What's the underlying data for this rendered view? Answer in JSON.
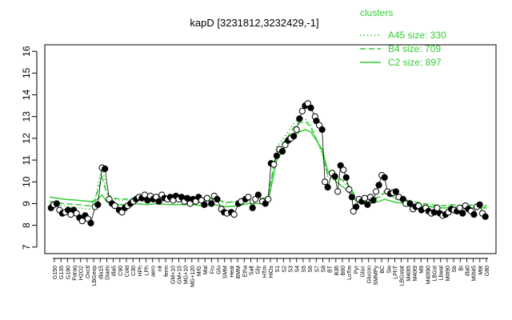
{
  "chart_data": {
    "type": "line",
    "title": "kapD [3231812,3232429,-1]",
    "xlabel": "",
    "ylabel": "",
    "ylim": [
      7,
      16
    ],
    "y_ticks": [
      7,
      8,
      9,
      10,
      11,
      12,
      13,
      14,
      15,
      16
    ],
    "grid": false,
    "legend": {
      "title": "clusters",
      "position": "top-right",
      "color": "#33cc33",
      "items": [
        {
          "label": "A45 size: 330",
          "style": "dotted"
        },
        {
          "label": "B4 size: 709",
          "style": "dashed"
        },
        {
          "label": "C2 size: 897",
          "style": "solid"
        }
      ]
    },
    "x_tick_labels": [
      "G150",
      "G135",
      "G180",
      "Paraq",
      "H2O2",
      "Oxctl",
      "LBGexp",
      "dla15",
      "Diami",
      "dla5",
      "C90",
      "Cold",
      "C30",
      "HPh",
      "LPh",
      "aero",
      "nit",
      "ferm",
      "GM+10",
      "GM+15",
      "MG+10",
      "MG+120",
      "M/G",
      "Mal",
      "Fru",
      "Glu",
      "SMM",
      "Heat",
      "BMM",
      "Etha",
      "Salt",
      "Gly",
      "HTm",
      "HiOs",
      "S1",
      "S2",
      "S3",
      "S4",
      "S5",
      "S6",
      "S7",
      "S8",
      "BT",
      "B36",
      "B60",
      "LoTm",
      "Pyr",
      "Gluc",
      "Glucon",
      "SMMPy",
      "BC",
      "Sw",
      "LPhT",
      "LBGstat",
      "M40t5",
      "M40t9",
      "M9",
      "M40t90",
      "LBGst",
      "Lbwal",
      "M0t90",
      "Sb",
      "BI",
      "dla0",
      "M0t45",
      "M9t",
      "G80"
    ],
    "marker_color": "#000000",
    "line_color": "#33cc33",
    "points": [
      {
        "x": 0.5,
        "y": 8.8
      },
      {
        "x": 1.5,
        "y": 8.95
      },
      {
        "x": 2.5,
        "y": 9.0
      },
      {
        "x": 3.5,
        "y": 8.7
      },
      {
        "x": 4.5,
        "y": 8.55
      },
      {
        "x": 5.5,
        "y": 8.6
      },
      {
        "x": 6.5,
        "y": 8.7
      },
      {
        "x": 7.5,
        "y": 8.5
      },
      {
        "x": 8.5,
        "y": 8.7
      },
      {
        "x": 9.5,
        "y": 8.55
      },
      {
        "x": 10.5,
        "y": 8.35
      },
      {
        "x": 11.5,
        "y": 8.2
      },
      {
        "x": 12.5,
        "y": 8.45
      },
      {
        "x": 13.5,
        "y": 8.3
      },
      {
        "x": 14.5,
        "y": 8.1
      },
      {
        "x": 16.0,
        "y": 8.85
      },
      {
        "x": 17.0,
        "y": 8.95
      },
      {
        "x": 18.5,
        "y": 10.65
      },
      {
        "x": 19.5,
        "y": 10.6
      },
      {
        "x": 21.0,
        "y": 9.2
      },
      {
        "x": 22.0,
        "y": 9.0
      },
      {
        "x": 23.0,
        "y": 8.9
      },
      {
        "x": 24.5,
        "y": 8.7
      },
      {
        "x": 25.5,
        "y": 8.6
      },
      {
        "x": 26.5,
        "y": 8.8
      },
      {
        "x": 27.5,
        "y": 8.9
      },
      {
        "x": 28.5,
        "y": 9.0
      },
      {
        "x": 29.5,
        "y": 9.1
      },
      {
        "x": 30.5,
        "y": 9.2
      },
      {
        "x": 31.5,
        "y": 9.3
      },
      {
        "x": 32.5,
        "y": 9.25
      },
      {
        "x": 33.5,
        "y": 9.4
      },
      {
        "x": 34.5,
        "y": 9.15
      },
      {
        "x": 35.5,
        "y": 9.35
      },
      {
        "x": 36.5,
        "y": 9.2
      },
      {
        "x": 37.5,
        "y": 9.3
      },
      {
        "x": 38.5,
        "y": 9.1
      },
      {
        "x": 39.5,
        "y": 9.4
      },
      {
        "x": 40.5,
        "y": 9.25
      },
      {
        "x": 41.5,
        "y": 9.2
      },
      {
        "x": 42.5,
        "y": 9.3
      },
      {
        "x": 43.5,
        "y": 9.15
      },
      {
        "x": 44.5,
        "y": 9.35
      },
      {
        "x": 45.5,
        "y": 9.2
      },
      {
        "x": 46.5,
        "y": 9.3
      },
      {
        "x": 47.5,
        "y": 9.1
      },
      {
        "x": 48.5,
        "y": 9.25
      },
      {
        "x": 49.5,
        "y": 9.0
      },
      {
        "x": 50.5,
        "y": 9.2
      },
      {
        "x": 51.5,
        "y": 9.1
      },
      {
        "x": 52.5,
        "y": 9.3
      },
      {
        "x": 53.5,
        "y": 9.15
      },
      {
        "x": 54.5,
        "y": 8.95
      },
      {
        "x": 55.5,
        "y": 9.25
      },
      {
        "x": 57.0,
        "y": 9.0
      },
      {
        "x": 58.0,
        "y": 9.35
      },
      {
        "x": 59.0,
        "y": 9.2
      },
      {
        "x": 60.5,
        "y": 8.75
      },
      {
        "x": 61.5,
        "y": 8.6
      },
      {
        "x": 62.5,
        "y": 8.55
      },
      {
        "x": 64.0,
        "y": 8.6
      },
      {
        "x": 65.0,
        "y": 8.5
      },
      {
        "x": 66.5,
        "y": 9.0
      },
      {
        "x": 67.5,
        "y": 9.1
      },
      {
        "x": 69.0,
        "y": 9.2
      },
      {
        "x": 70.0,
        "y": 9.3
      },
      {
        "x": 71.5,
        "y": 8.8
      },
      {
        "x": 72.5,
        "y": 9.2
      },
      {
        "x": 73.5,
        "y": 9.4
      },
      {
        "x": 75.0,
        "y": 9.1
      },
      {
        "x": 76.0,
        "y": 9.0
      },
      {
        "x": 77.0,
        "y": 9.2
      },
      {
        "x": 78.0,
        "y": 10.85
      },
      {
        "x": 79.0,
        "y": 10.8
      },
      {
        "x": 80.0,
        "y": 11.2
      },
      {
        "x": 81.0,
        "y": 11.5
      },
      {
        "x": 82.0,
        "y": 11.4
      },
      {
        "x": 83.0,
        "y": 11.7
      },
      {
        "x": 84.0,
        "y": 11.9
      },
      {
        "x": 85.0,
        "y": 12.0
      },
      {
        "x": 86.0,
        "y": 12.1
      },
      {
        "x": 87.0,
        "y": 12.4
      },
      {
        "x": 88.0,
        "y": 12.9
      },
      {
        "x": 89.0,
        "y": 13.25
      },
      {
        "x": 90.0,
        "y": 13.5
      },
      {
        "x": 91.0,
        "y": 13.6
      },
      {
        "x": 92.0,
        "y": 13.4
      },
      {
        "x": 93.5,
        "y": 13.0
      },
      {
        "x": 94.0,
        "y": 12.8
      },
      {
        "x": 95.0,
        "y": 12.6
      },
      {
        "x": 96.0,
        "y": 12.4
      },
      {
        "x": 97.0,
        "y": 10.0
      },
      {
        "x": 98.0,
        "y": 9.75
      },
      {
        "x": 99.5,
        "y": 10.4
      },
      {
        "x": 100.5,
        "y": 10.25
      },
      {
        "x": 101.5,
        "y": 9.55
      },
      {
        "x": 102.5,
        "y": 10.75
      },
      {
        "x": 103.5,
        "y": 10.55
      },
      {
        "x": 104.5,
        "y": 10.2
      },
      {
        "x": 105.5,
        "y": 9.65
      },
      {
        "x": 106.5,
        "y": 9.3
      },
      {
        "x": 107.0,
        "y": 8.65
      },
      {
        "x": 108.0,
        "y": 8.85
      },
      {
        "x": 109.0,
        "y": 9.2
      },
      {
        "x": 110.0,
        "y": 9.1
      },
      {
        "x": 111.0,
        "y": 9.25
      },
      {
        "x": 112.0,
        "y": 8.95
      },
      {
        "x": 113.0,
        "y": 9.3
      },
      {
        "x": 114.0,
        "y": 9.15
      },
      {
        "x": 115.0,
        "y": 9.55
      },
      {
        "x": 116.0,
        "y": 9.85
      },
      {
        "x": 117.0,
        "y": 10.3
      },
      {
        "x": 118.0,
        "y": 10.2
      },
      {
        "x": 119.0,
        "y": 9.55
      },
      {
        "x": 120.0,
        "y": 9.45
      },
      {
        "x": 121.0,
        "y": 9.5
      },
      {
        "x": 122.0,
        "y": 9.55
      },
      {
        "x": 123.0,
        "y": 9.3
      },
      {
        "x": 124.5,
        "y": 9.2
      },
      {
        "x": 125.5,
        "y": 9.0
      },
      {
        "x": 127.0,
        "y": 9.0
      },
      {
        "x": 128.0,
        "y": 8.75
      },
      {
        "x": 129.0,
        "y": 8.85
      },
      {
        "x": 130.0,
        "y": 8.9
      },
      {
        "x": 131.0,
        "y": 8.7
      },
      {
        "x": 132.5,
        "y": 8.8
      },
      {
        "x": 133.5,
        "y": 8.65
      },
      {
        "x": 134.5,
        "y": 8.55
      },
      {
        "x": 135.5,
        "y": 8.6
      },
      {
        "x": 136.5,
        "y": 8.8
      },
      {
        "x": 137.5,
        "y": 8.55
      },
      {
        "x": 138.5,
        "y": 8.45
      },
      {
        "x": 139.5,
        "y": 8.5
      },
      {
        "x": 140.5,
        "y": 8.6
      },
      {
        "x": 141.5,
        "y": 8.75
      },
      {
        "x": 142.5,
        "y": 8.7
      },
      {
        "x": 143.5,
        "y": 8.65
      },
      {
        "x": 144.5,
        "y": 8.8
      },
      {
        "x": 145.5,
        "y": 8.55
      },
      {
        "x": 146.5,
        "y": 8.9
      },
      {
        "x": 147.5,
        "y": 8.75
      },
      {
        "x": 148.5,
        "y": 8.65
      },
      {
        "x": 149.5,
        "y": 8.5
      },
      {
        "x": 150.5,
        "y": 8.85
      },
      {
        "x": 151.5,
        "y": 8.95
      },
      {
        "x": 152.5,
        "y": 8.55
      },
      {
        "x": 153.5,
        "y": 8.4
      }
    ],
    "xlim": [
      0,
      155
    ],
    "series": [
      {
        "name": "A45 size: 330",
        "style": "dotted",
        "x": [
          0,
          5,
          10,
          14,
          16,
          18.5,
          20,
          22,
          26,
          30,
          34,
          38,
          42,
          46,
          50,
          54,
          58,
          62,
          66,
          70,
          74,
          77,
          80,
          84,
          86,
          88,
          90,
          92,
          96,
          98,
          101,
          103,
          105,
          108,
          112,
          116,
          118,
          122,
          126,
          130,
          134,
          138,
          142,
          146,
          150,
          154
        ],
        "y": [
          9.0,
          8.9,
          8.8,
          8.75,
          9.2,
          10.7,
          9.6,
          9.2,
          9.15,
          9.2,
          9.2,
          9.25,
          9.2,
          9.2,
          9.2,
          9.15,
          9.2,
          9.0,
          9.1,
          9.15,
          9.2,
          9.3,
          11.6,
          12.3,
          12.7,
          12.9,
          12.9,
          12.6,
          11.3,
          10.2,
          10.1,
          10.1,
          9.8,
          9.2,
          9.1,
          9.25,
          9.6,
          9.2,
          9.1,
          9.0,
          8.9,
          8.9,
          8.9,
          8.85,
          8.9,
          8.85
        ]
      },
      {
        "name": "B4 size: 709",
        "style": "dashed",
        "x": [
          0,
          5,
          10,
          14,
          16,
          18.5,
          20,
          22,
          26,
          30,
          34,
          38,
          42,
          46,
          50,
          54,
          58,
          62,
          66,
          70,
          74,
          77,
          80,
          84,
          86,
          88,
          90,
          92,
          96,
          98,
          101,
          103,
          105,
          108,
          112,
          116,
          118,
          122,
          126,
          130,
          134,
          138,
          142,
          146,
          150,
          154
        ],
        "y": [
          9.1,
          9.0,
          8.95,
          8.9,
          9.2,
          10.2,
          9.5,
          9.25,
          9.2,
          9.25,
          9.2,
          9.3,
          9.25,
          9.25,
          9.2,
          9.2,
          9.25,
          9.05,
          9.1,
          9.2,
          9.2,
          9.3,
          11.4,
          12.1,
          12.5,
          12.7,
          12.8,
          12.5,
          11.4,
          10.3,
          10.2,
          10.1,
          9.9,
          9.3,
          9.2,
          9.3,
          9.5,
          9.25,
          9.15,
          9.05,
          8.95,
          8.9,
          8.95,
          8.9,
          8.95,
          8.9
        ]
      },
      {
        "name": "C2 size: 897",
        "style": "solid",
        "x": [
          0,
          5,
          10,
          14,
          16,
          18.5,
          20,
          22,
          26,
          30,
          34,
          38,
          42,
          46,
          50,
          54,
          58,
          62,
          66,
          70,
          74,
          77,
          80,
          84,
          86,
          88,
          90,
          92,
          96,
          98,
          101,
          103,
          105,
          108,
          112,
          116,
          118,
          122,
          126,
          130,
          134,
          138,
          142,
          146,
          150,
          154
        ],
        "y": [
          9.3,
          9.2,
          9.15,
          9.1,
          9.1,
          9.4,
          9.1,
          8.95,
          8.95,
          9.0,
          8.95,
          9.0,
          8.95,
          8.95,
          8.95,
          8.9,
          8.95,
          8.85,
          8.9,
          9.0,
          9.0,
          9.1,
          11.0,
          11.8,
          12.1,
          12.3,
          12.4,
          12.3,
          11.5,
          10.5,
          10.0,
          9.8,
          9.6,
          9.1,
          9.0,
          9.1,
          9.2,
          9.05,
          9.0,
          8.9,
          8.85,
          8.8,
          8.8,
          8.8,
          8.8,
          8.8
        ]
      }
    ]
  }
}
